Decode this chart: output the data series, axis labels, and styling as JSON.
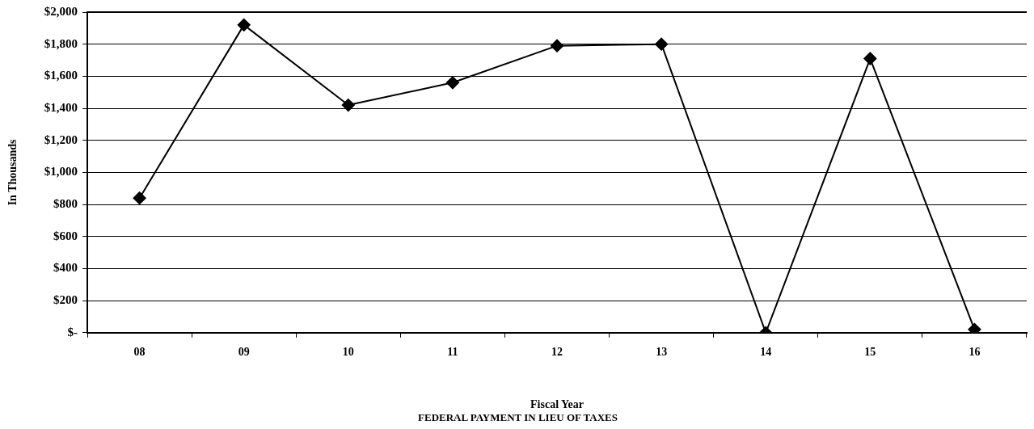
{
  "chart_data": {
    "type": "line",
    "title": "FEDERAL PAYMENT IN LIEU OF TAXES",
    "xlabel": "Fiscal Year",
    "ylabel": "In Thousands",
    "categories": [
      "08",
      "09",
      "10",
      "11",
      "12",
      "13",
      "14",
      "15",
      "16"
    ],
    "series": [
      {
        "color": "#000000",
        "values": [
          840,
          1920,
          1420,
          1560,
          1790,
          1800,
          0,
          1710,
          20
        ]
      }
    ],
    "ylim": [
      0,
      2000
    ],
    "yticks": [
      {
        "value": 0,
        "label": "$-"
      },
      {
        "value": 200,
        "label": "$200"
      },
      {
        "value": 400,
        "label": "$400"
      },
      {
        "value": 600,
        "label": "$600"
      },
      {
        "value": 800,
        "label": "$800"
      },
      {
        "value": 1000,
        "label": "$1,000"
      },
      {
        "value": 1200,
        "label": "$1,200"
      },
      {
        "value": 1400,
        "label": "$1,400"
      },
      {
        "value": 1600,
        "label": "$1,600"
      },
      {
        "value": 1800,
        "label": "$1,800"
      },
      {
        "value": 2000,
        "label": "$2,000"
      }
    ],
    "grid": "y",
    "legend": false,
    "marker": "diamond",
    "line_style": "solid"
  }
}
